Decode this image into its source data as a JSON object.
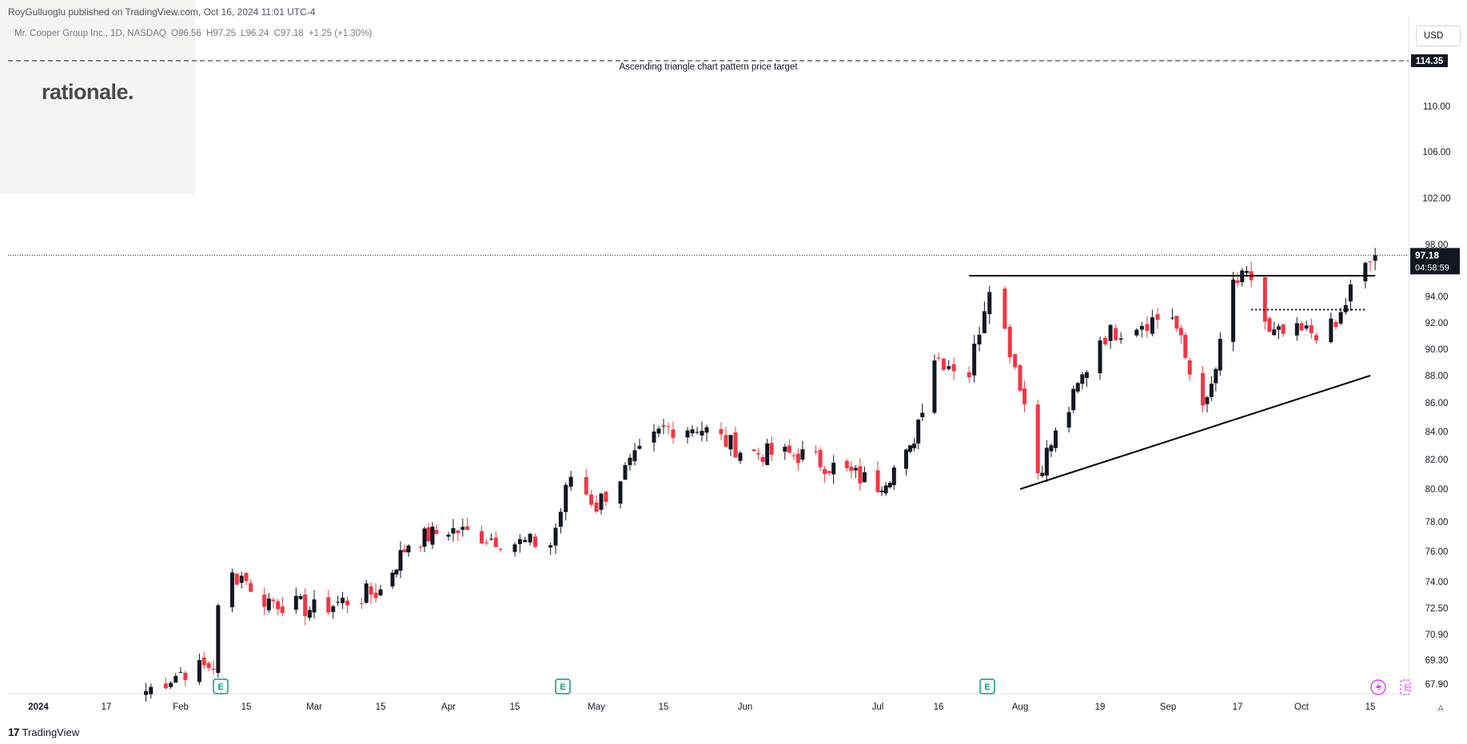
{
  "header": {
    "publisher_text": "RoyGulluoglu published on TradingView.com, Oct 16, 2024 11:01 UTC-4"
  },
  "legend": {
    "symbol": "Mr. Cooper Group Inc., 1D, NASDAQ",
    "open": "O96.56",
    "high": "H97.25",
    "low": "L96.24",
    "close": "C97.18",
    "change": "+1.25 (+1.30%)"
  },
  "watermark": {
    "text": "rationale."
  },
  "toolbar": {
    "currency_label": "USD",
    "scale_mode_label": "A"
  },
  "footer": {
    "brand_label": "TradingView"
  },
  "colors": {
    "up": "#131722",
    "down": "#f23645",
    "accent": "#000000",
    "earnings_badge": "#089981"
  },
  "chart_data": {
    "type": "candlestick",
    "symbol": "Mr. Cooper Group Inc., 1D, NASDAQ",
    "y_ticks": [
      "67.90",
      "69.30",
      "70.90",
      "72.50",
      "74.00",
      "76.00",
      "78.00",
      "80.00",
      "82.00",
      "84.00",
      "86.00",
      "88.00",
      "90.00",
      "92.00",
      "94.00",
      "98.00",
      "102.00",
      "106.00",
      "110.00"
    ],
    "x_ticks": [
      "2024",
      "17",
      "Feb",
      "15",
      "Mar",
      "15",
      "Apr",
      "15",
      "May",
      "15",
      "Jun",
      "Jul",
      "16",
      "Aug",
      "19",
      "Sep",
      "17",
      "Oct",
      "15"
    ],
    "last_price_label": "97.18",
    "countdown_label": "04:58:59",
    "target_price_label": "114.35",
    "target_annotation": "Ascending triangle chart pattern price target",
    "earnings_badge_label": "E",
    "series": [
      {
        "date": "2024-01-25",
        "close": 67.5
      },
      {
        "date": "2024-02-01",
        "close": 68.6
      },
      {
        "date": "2024-02-08",
        "close": 69.0
      },
      {
        "date": "2024-02-09",
        "close": 72.3
      },
      {
        "date": "2024-02-12",
        "close": 74.4
      },
      {
        "date": "2024-02-15",
        "close": 74.4
      },
      {
        "date": "2024-02-16",
        "close": 73.2
      },
      {
        "date": "2024-03-01",
        "close": 72.4
      },
      {
        "date": "2024-03-15",
        "close": 73.5
      },
      {
        "date": "2024-03-22",
        "close": 76.6
      },
      {
        "date": "2024-04-01",
        "close": 77.5
      },
      {
        "date": "2024-04-15",
        "close": 76.6
      },
      {
        "date": "2024-04-22",
        "close": 76.5
      },
      {
        "date": "2024-04-26",
        "close": 80.9
      },
      {
        "date": "2024-05-01",
        "close": 79.0
      },
      {
        "date": "2024-05-15",
        "close": 84.2
      },
      {
        "date": "2024-05-22",
        "close": 84.4
      },
      {
        "date": "2024-06-01",
        "close": 82.5
      },
      {
        "date": "2024-06-14",
        "close": 82.3
      },
      {
        "date": "2024-07-01",
        "close": 80.3
      },
      {
        "date": "2024-07-09",
        "close": 82.5
      },
      {
        "date": "2024-07-15",
        "close": 89.5
      },
      {
        "date": "2024-07-22",
        "close": 88.2
      },
      {
        "date": "2024-07-26",
        "close": 95.2
      },
      {
        "date": "2024-08-01",
        "close": 87.5
      },
      {
        "date": "2024-08-05",
        "close": 81.2
      },
      {
        "date": "2024-08-12",
        "close": 85.6
      },
      {
        "date": "2024-08-19",
        "close": 90.9
      },
      {
        "date": "2024-08-26",
        "close": 92.0
      },
      {
        "date": "2024-09-02",
        "close": 92.6
      },
      {
        "date": "2024-09-06",
        "close": 88.2
      },
      {
        "date": "2024-09-10",
        "close": 85.8
      },
      {
        "date": "2024-09-12",
        "close": 88.5
      },
      {
        "date": "2024-09-16",
        "close": 95.0
      },
      {
        "date": "2024-09-20",
        "close": 95.4
      },
      {
        "date": "2024-09-24",
        "close": 91.0
      },
      {
        "date": "2024-10-01",
        "close": 91.2
      },
      {
        "date": "2024-10-08",
        "close": 91.6
      },
      {
        "date": "2024-10-11",
        "close": 94.5
      },
      {
        "date": "2024-10-16",
        "close": 97.18
      }
    ],
    "annotations": {
      "resistance_line": 95.6,
      "target_line": 114.35,
      "support_line": {
        "from": {
          "date": "2024-08-01",
          "price": 80.0
        },
        "to": {
          "date": "2024-10-15",
          "price": 88.0
        }
      },
      "dotted_level": 93.0
    }
  }
}
